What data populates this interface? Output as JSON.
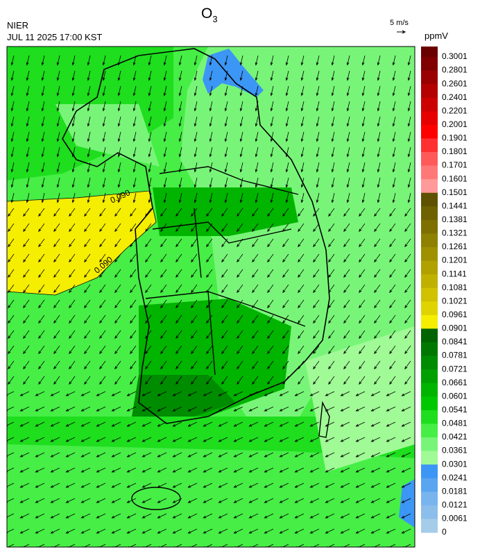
{
  "header": {
    "agency": "NIER",
    "datetime": "JUL 11 2025 17:00 KST",
    "title": {
      "text": "O",
      "subscript": "3"
    },
    "wind_scale": "5 m/s"
  },
  "legend": {
    "unit": "ppmV",
    "labels": [
      "0.3001",
      "0.2801",
      "0.2601",
      "0.2401",
      "0.2201",
      "0.2001",
      "0.1901",
      "0.1801",
      "0.1701",
      "0.1601",
      "0.1501",
      "0.1441",
      "0.1381",
      "0.1321",
      "0.1261",
      "0.1201",
      "0.1141",
      "0.1081",
      "0.1021",
      "0.0961",
      "0.0901",
      "0.0841",
      "0.0781",
      "0.0721",
      "0.0661",
      "0.0601",
      "0.0541",
      "0.0481",
      "0.0421",
      "0.0361",
      "0.0301",
      "0.0241",
      "0.0181",
      "0.0121",
      "0.0061",
      "0"
    ],
    "colors": [
      "#6b0000",
      "#800000",
      "#9a0000",
      "#b40000",
      "#cd0000",
      "#e60000",
      "#ff0000",
      "#ff3030",
      "#ff5a5a",
      "#ff7878",
      "#ff9a9a",
      "#5e5200",
      "#6e6200",
      "#7e7000",
      "#8e8000",
      "#9e9000",
      "#b0a000",
      "#c0b000",
      "#d0c200",
      "#e0d400",
      "#f5ee00",
      "#006400",
      "#007800",
      "#008c00",
      "#00a000",
      "#00b400",
      "#00c800",
      "#1ede1e",
      "#46ee46",
      "#78f578",
      "#a0fa96",
      "#3c96f5",
      "#5aa5f0",
      "#78b4ee",
      "#8cbeeb",
      "#a5cdea"
    ]
  },
  "map": {
    "contour_labels": [
      "0.090",
      "0.090"
    ]
  }
}
